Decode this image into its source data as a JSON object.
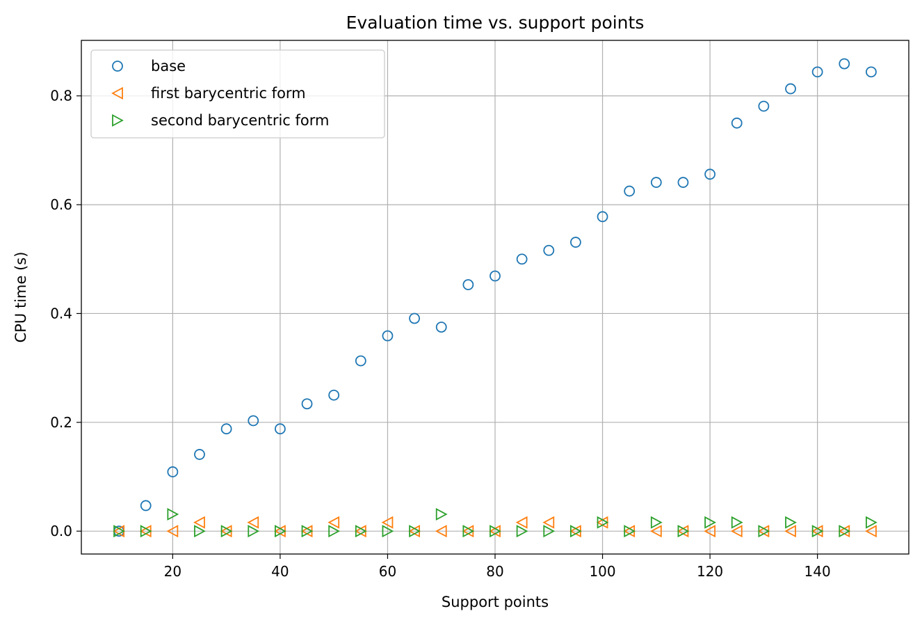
{
  "chart_data": {
    "type": "scatter",
    "title": "Evaluation time vs. support points",
    "xlabel": "Support points",
    "ylabel": "CPU time (s)",
    "xlim": [
      3,
      157
    ],
    "ylim": [
      -0.042,
      0.902
    ],
    "xticks": [
      20,
      40,
      60,
      80,
      100,
      120,
      140
    ],
    "yticks": [
      0.0,
      0.2,
      0.4,
      0.6,
      0.8
    ],
    "ytick_labels": [
      "0.0",
      "0.2",
      "0.4",
      "0.6",
      "0.8"
    ],
    "grid": true,
    "legend_position": "top-left",
    "x": [
      10,
      15,
      20,
      25,
      30,
      35,
      40,
      45,
      50,
      55,
      60,
      65,
      70,
      75,
      80,
      85,
      90,
      95,
      100,
      105,
      110,
      115,
      120,
      125,
      130,
      135,
      140,
      145,
      150
    ],
    "series": [
      {
        "name": "base",
        "marker": "circle",
        "color": "#1f77b4",
        "values": [
          0.0,
          0.047,
          0.109,
          0.141,
          0.188,
          0.203,
          0.188,
          0.234,
          0.25,
          0.313,
          0.359,
          0.391,
          0.375,
          0.453,
          0.469,
          0.5,
          0.516,
          0.531,
          0.578,
          0.625,
          0.641,
          0.641,
          0.656,
          0.75,
          0.781,
          0.813,
          0.844,
          0.859,
          0.844
        ]
      },
      {
        "name": "first barycentric form",
        "marker": "triangle-left",
        "color": "#ff7f0e",
        "values": [
          0.0,
          0.0,
          0.0,
          0.016,
          0.0,
          0.016,
          0.0,
          0.0,
          0.016,
          0.0,
          0.016,
          0.0,
          0.0,
          0.0,
          0.0,
          0.016,
          0.016,
          0.0,
          0.016,
          0.0,
          0.0,
          0.0,
          0.0,
          0.0,
          0.0,
          0.0,
          0.0,
          0.0,
          0.0
        ]
      },
      {
        "name": "second barycentric form",
        "marker": "triangle-right",
        "color": "#2ca02c",
        "values": [
          0.0,
          0.0,
          0.031,
          0.0,
          0.0,
          0.0,
          0.0,
          0.0,
          0.0,
          0.0,
          0.0,
          0.0,
          0.031,
          0.0,
          0.0,
          0.0,
          0.0,
          0.0,
          0.016,
          0.0,
          0.016,
          0.0,
          0.016,
          0.016,
          0.0,
          0.016,
          0.0,
          0.0,
          0.016
        ]
      }
    ]
  }
}
